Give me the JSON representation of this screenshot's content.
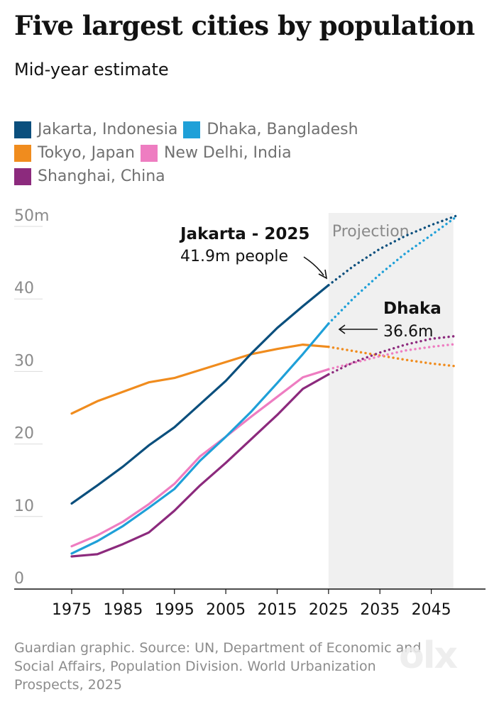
{
  "header": {
    "title": "Five largest cities by population",
    "subtitle": "Mid-year estimate"
  },
  "legend": [
    {
      "label": "Jakarta, Indonesia",
      "color": "#0b4f7d"
    },
    {
      "label": "Dhaka, Bangladesh",
      "color": "#1fa0d8"
    },
    {
      "label": "Tokyo, Japan",
      "color": "#f08c1e"
    },
    {
      "label": "New Delhi, India",
      "color": "#ee7dc1"
    },
    {
      "label": "Shanghai, China",
      "color": "#8c2a7d"
    }
  ],
  "chart_data": {
    "type": "line",
    "x": [
      1975,
      1980,
      1985,
      1990,
      1995,
      2000,
      2005,
      2010,
      2015,
      2020,
      2025,
      2030,
      2035,
      2040,
      2045,
      2050
    ],
    "projection_start": 2025,
    "projection_end": 2050,
    "projection_label": "Projection",
    "xticks": [
      "1975",
      "1985",
      "1995",
      "2005",
      "2015",
      "2025",
      "2035",
      "2045"
    ],
    "yticks": [
      "50m",
      "40",
      "30",
      "20",
      "10",
      "0"
    ],
    "ylim": [
      0,
      50
    ],
    "xlim": [
      1970,
      2053
    ],
    "series": [
      {
        "name": "Jakarta, Indonesia",
        "color": "#0b4f7d",
        "values": [
          11.8,
          14.3,
          16.9,
          19.8,
          22.3,
          25.5,
          28.7,
          32.5,
          36.0,
          39.0,
          41.9,
          44.6,
          46.9,
          48.7,
          50.2,
          51.5
        ]
      },
      {
        "name": "Dhaka, Bangladesh",
        "color": "#1fa0d8",
        "values": [
          4.9,
          6.6,
          8.7,
          11.2,
          13.8,
          17.7,
          21.0,
          24.5,
          28.4,
          32.4,
          36.6,
          40.2,
          43.4,
          46.3,
          48.8,
          51.4
        ]
      },
      {
        "name": "Tokyo, Japan",
        "color": "#f08c1e",
        "values": [
          24.2,
          25.9,
          27.2,
          28.5,
          29.1,
          30.2,
          31.3,
          32.4,
          33.1,
          33.7,
          33.4,
          32.8,
          32.2,
          31.6,
          31.1,
          30.7
        ]
      },
      {
        "name": "New Delhi, India",
        "color": "#ee7dc1",
        "values": [
          5.9,
          7.4,
          9.3,
          11.7,
          14.5,
          18.3,
          21.0,
          23.8,
          26.5,
          29.2,
          30.3,
          31.2,
          32.1,
          32.9,
          33.4,
          33.8
        ]
      },
      {
        "name": "Shanghai, China",
        "color": "#8c2a7d",
        "values": [
          4.5,
          4.8,
          6.2,
          7.8,
          10.8,
          14.3,
          17.4,
          20.7,
          24.0,
          27.6,
          29.6,
          31.3,
          32.6,
          33.7,
          34.5,
          34.9
        ]
      }
    ],
    "annotations": [
      {
        "title": "Jakarta - 2025",
        "text": "41.9m people",
        "x": 2025,
        "y": 41.9
      },
      {
        "title": "Dhaka",
        "text": "36.6m",
        "x": 2025,
        "y": 36.6
      }
    ]
  },
  "footer": {
    "source_lines": [
      "Guardian graphic. Source: UN, Department of Economic and",
      "Social Affairs, Population Division. World Urbanization",
      "Prospects, 2025"
    ]
  },
  "watermark": "olx"
}
